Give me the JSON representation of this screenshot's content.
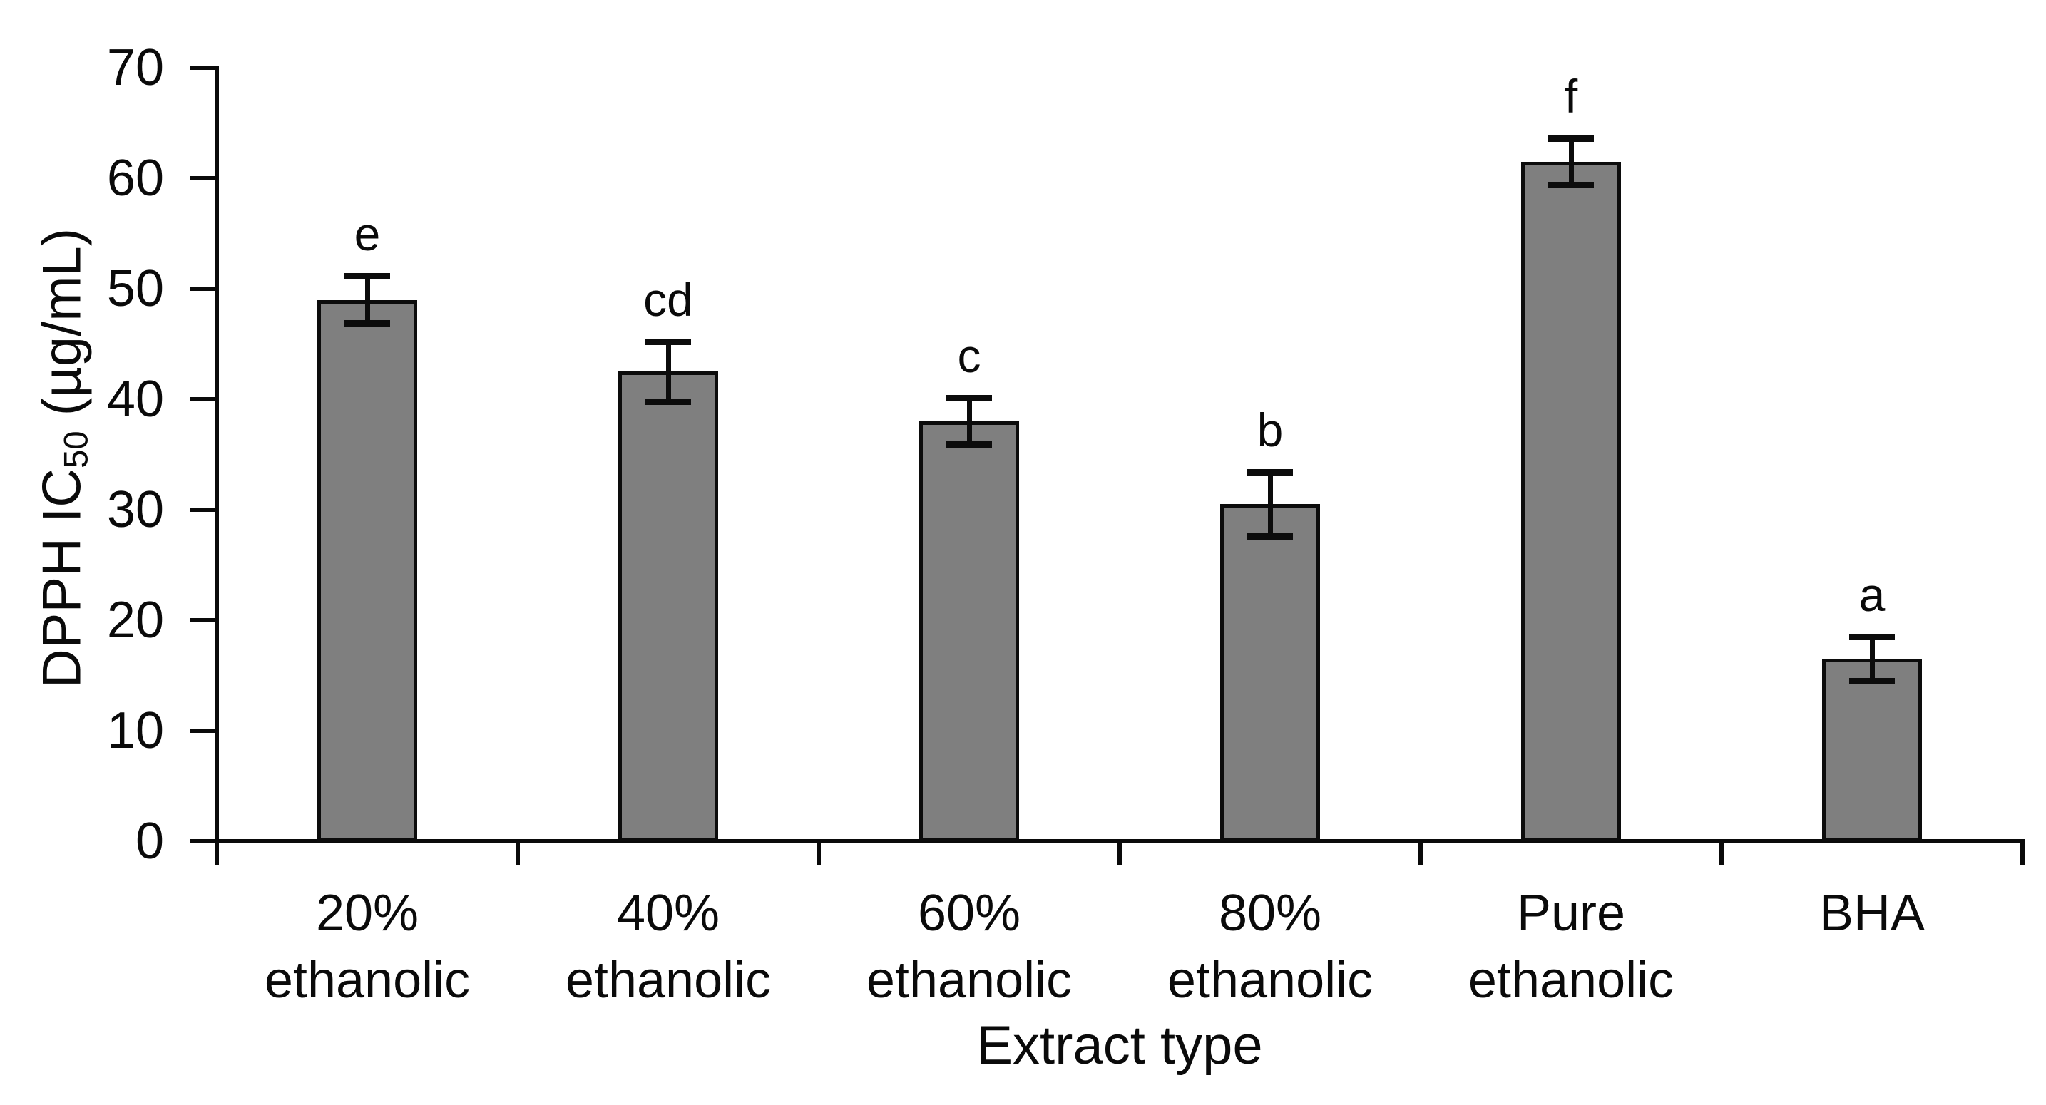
{
  "chart_data": {
    "type": "bar",
    "title": "",
    "xlabel": "Extract type",
    "ylabel": "DPPH IC50 (µg/mL)",
    "ylabel_parts": {
      "prefix": "DPPH IC",
      "sub": "50",
      "suffix": " (µg/mL)"
    },
    "ylim": [
      0,
      70
    ],
    "ytick_step": 10,
    "yticks": [
      0,
      10,
      20,
      30,
      40,
      50,
      60,
      70
    ],
    "grid": false,
    "legend": false,
    "categories": [
      "20% ethanolic",
      "40% ethanolic",
      "60% ethanolic",
      "80% ethanolic",
      "Pure ethanolic",
      "BHA"
    ],
    "category_lines": [
      [
        "20%",
        "ethanolic"
      ],
      [
        "40%",
        "ethanolic"
      ],
      [
        "60%",
        "ethanolic"
      ],
      [
        "80%",
        "ethanolic"
      ],
      [
        "Pure",
        "ethanolic"
      ],
      [
        "BHA"
      ]
    ],
    "series": [
      {
        "name": "DPPH IC50",
        "values": [
          49.0,
          42.5,
          38.0,
          30.5,
          61.5,
          16.5
        ],
        "errors": [
          2.1,
          2.7,
          2.1,
          2.9,
          2.1,
          2.0
        ],
        "sig_letters": [
          "e",
          "cd",
          "c",
          "b",
          "f",
          "a"
        ]
      }
    ],
    "colors": {
      "bar_fill": "#7f7f7f",
      "bar_border": "#0c0c0c",
      "axis": "#0a0a0a",
      "text": "#0a0a0a",
      "background": "#ffffff"
    }
  }
}
